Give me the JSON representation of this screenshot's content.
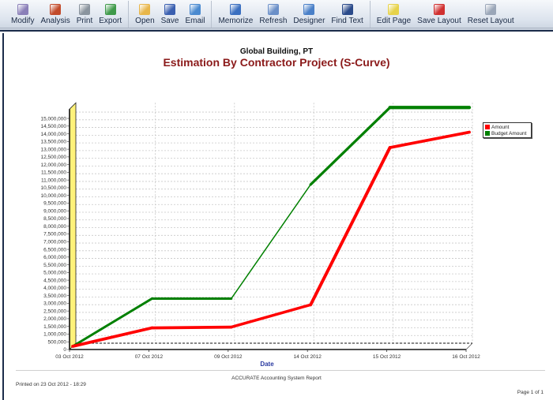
{
  "toolbar": {
    "groups": [
      [
        {
          "label": "Modify",
          "icon": "modify-icon",
          "color": "#8a7fb8"
        },
        {
          "label": "Analysis",
          "icon": "analysis-icon",
          "color": "#c24a2a"
        },
        {
          "label": "Print",
          "icon": "print-icon",
          "color": "#8a949e"
        },
        {
          "label": "Export",
          "icon": "export-icon",
          "color": "#3f9a4a"
        }
      ],
      [
        {
          "label": "Open",
          "icon": "open-folder-icon",
          "color": "#e8b64a"
        },
        {
          "label": "Save",
          "icon": "save-disk-icon",
          "color": "#3a5fb0"
        },
        {
          "label": "Email",
          "icon": "email-icon",
          "color": "#4a8ad0"
        }
      ],
      [
        {
          "label": "Memorize",
          "icon": "memorize-icon",
          "color": "#3a6fc0"
        },
        {
          "label": "Refresh",
          "icon": "refresh-icon",
          "color": "#6a8fc8"
        },
        {
          "label": "Designer",
          "icon": "designer-icon",
          "color": "#4a80c8"
        },
        {
          "label": "Find Text",
          "icon": "binoculars-icon",
          "color": "#2a4a8a"
        }
      ],
      [
        {
          "label": "Edit Page",
          "icon": "edit-page-icon",
          "color": "#e6d24a"
        },
        {
          "label": "Save Layout",
          "icon": "save-layout-icon",
          "color": "#d03030"
        },
        {
          "label": "Reset Layout",
          "icon": "reset-layout-icon",
          "color": "#9aa6b8"
        }
      ]
    ]
  },
  "report": {
    "company": "Global Building, PT",
    "title": "Estimation By Contractor Project (S-Curve)",
    "footer_center": "ACCURATE Accounting System Report",
    "printed_on": "Printed on 23 Oct 2012 - 18:29",
    "page_info": "Page 1 of 1"
  },
  "legend": {
    "items": [
      {
        "label": "Amount",
        "color": "#ff0000"
      },
      {
        "label": "Budget Amount",
        "color": "#008000"
      }
    ]
  },
  "chart_data": {
    "type": "line",
    "title": "Estimation By Contractor Project (S-Curve)",
    "subtitle": "Global Building, PT",
    "xlabel": "Date",
    "ylabel": "",
    "categories": [
      "03 Oct 2012",
      "07 Oct 2012",
      "09 Oct 2012",
      "14 Oct 2012",
      "15 Oct 2012",
      "16 Oct 2012"
    ],
    "series": [
      {
        "name": "Amount",
        "color": "#ff0000",
        "values": [
          0,
          1200000,
          1250000,
          2700000,
          12900000,
          13900000
        ]
      },
      {
        "name": "Budget Amount",
        "color": "#008000",
        "values": [
          0,
          3100000,
          3100000,
          10500000,
          15500000,
          15500000
        ]
      }
    ],
    "y_ticks": [
      "0",
      "500,000",
      "1,000,000",
      "1,500,000",
      "2,000,000",
      "2,500,000",
      "3,000,000",
      "3,500,000",
      "4,000,000",
      "4,500,000",
      "5,000,000",
      "5,500,000",
      "6,000,000",
      "6,500,000",
      "7,000,000",
      "7,500,000",
      "8,000,000",
      "8,500,000",
      "9,000,000",
      "9,500,000",
      "10,000,000",
      "10,500,000",
      "11,000,000",
      "11,500,000",
      "12,000,000",
      "12,500,000",
      "13,000,000",
      "13,500,000",
      "14,000,000",
      "14,500,000",
      "15,000,000"
    ],
    "ylim": [
      0,
      15500000
    ],
    "grid": true,
    "legend_position": "right",
    "style": "3d-wall"
  }
}
